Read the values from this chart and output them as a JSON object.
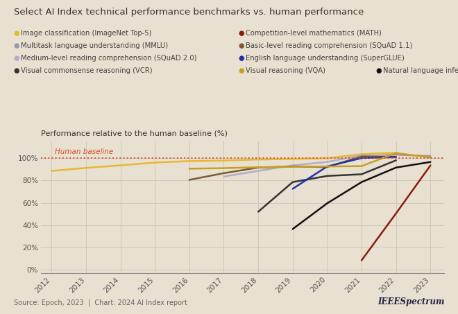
{
  "title": "Select AI Index technical performance benchmarks vs. human performance",
  "ylabel": "Performance relative to the human baseline (%)",
  "background_color": "#e8e0d0",
  "grid_color": "#ccc4b4",
  "source_text": "Source: Epoch, 2023  |  Chart: 2024 AI Index report",
  "ieee_text": "IEEESpectrum",
  "human_baseline_label": "Human baseline",
  "human_baseline_color": "#d94e2a",
  "series": [
    {
      "label": "Image classification (ImageNet Top-5)",
      "color": "#e8b830",
      "linewidth": 1.8,
      "data": [
        [
          2012,
          88.5
        ],
        [
          2013,
          91.2
        ],
        [
          2014,
          93.5
        ],
        [
          2015,
          96.0
        ],
        [
          2016,
          97.3
        ],
        [
          2017,
          97.8
        ],
        [
          2018,
          98.7
        ],
        [
          2019,
          99.2
        ],
        [
          2020,
          99.8
        ],
        [
          2021,
          103.5
        ],
        [
          2022,
          104.8
        ]
      ]
    },
    {
      "label": "Multitask language understanding (MMLU)",
      "color": "#9999aa",
      "linewidth": 1.8,
      "data": [
        [
          2021,
          101.5
        ],
        [
          2022,
          103.0
        ],
        [
          2023,
          101.8
        ]
      ]
    },
    {
      "label": "Medium-level reading comprehension (SQuAD 2.0)",
      "color": "#b0aec8",
      "linewidth": 1.8,
      "data": [
        [
          2017,
          83.5
        ],
        [
          2018,
          88.5
        ],
        [
          2019,
          93.5
        ],
        [
          2020,
          96.5
        ],
        [
          2021,
          102.5
        ],
        [
          2022,
          101.5
        ]
      ]
    },
    {
      "label": "Visual commonsense reasoning (VCR)",
      "color": "#333333",
      "linewidth": 1.8,
      "data": [
        [
          2018,
          52.0
        ],
        [
          2019,
          78.5
        ],
        [
          2020,
          84.0
        ],
        [
          2021,
          85.5
        ],
        [
          2022,
          98.0
        ]
      ]
    },
    {
      "label": "Competition-level mathematics (MATH)",
      "color": "#8b1a10",
      "linewidth": 1.8,
      "data": [
        [
          2021,
          8.5
        ],
        [
          2022,
          50.5
        ],
        [
          2023,
          93.5
        ]
      ]
    },
    {
      "label": "Basic-level reading comprehension (SQuAD 1.1)",
      "color": "#7a5c30",
      "linewidth": 1.8,
      "data": [
        [
          2016,
          80.5
        ],
        [
          2017,
          86.5
        ],
        [
          2018,
          91.5
        ],
        [
          2019,
          92.5
        ],
        [
          2020,
          92.0
        ],
        [
          2021,
          101.5
        ],
        [
          2022,
          101.0
        ]
      ]
    },
    {
      "label": "English language understanding (SuperGLUE)",
      "color": "#2233aa",
      "linewidth": 1.8,
      "data": [
        [
          2019,
          72.5
        ],
        [
          2020,
          92.5
        ],
        [
          2021,
          100.0
        ],
        [
          2022,
          101.0
        ]
      ]
    },
    {
      "label": "Visual reasoning (VQA)",
      "color": "#c8a020",
      "linewidth": 1.8,
      "data": [
        [
          2016,
          90.5
        ],
        [
          2017,
          91.0
        ],
        [
          2018,
          91.8
        ],
        [
          2019,
          92.2
        ],
        [
          2020,
          92.5
        ],
        [
          2021,
          92.8
        ],
        [
          2022,
          104.5
        ],
        [
          2023,
          100.5
        ]
      ]
    },
    {
      "label": "Natural language inference (aNLI)",
      "color": "#111111",
      "linewidth": 1.8,
      "data": [
        [
          2019,
          36.5
        ],
        [
          2020,
          59.5
        ],
        [
          2021,
          78.5
        ],
        [
          2022,
          91.5
        ],
        [
          2023,
          96.5
        ]
      ]
    }
  ],
  "xlim": [
    2011.7,
    2023.4
  ],
  "ylim": [
    -3,
    115
  ],
  "yticks": [
    0,
    20,
    40,
    60,
    80,
    100
  ],
  "xticks": [
    2012,
    2013,
    2014,
    2015,
    2016,
    2017,
    2018,
    2019,
    2020,
    2021,
    2022,
    2023
  ],
  "legend_items": [
    {
      "label": "Image classification (ImageNet Top-5)",
      "color": "#e8b830"
    },
    {
      "label": "Competition-level mathematics (MATH)",
      "color": "#8b1a10"
    },
    {
      "label": "Multitask language understanding (MMLU)",
      "color": "#9999aa"
    },
    {
      "label": "Basic-level reading comprehension (SQuAD 1.1)",
      "color": "#7a5c30"
    },
    {
      "label": "Medium-level reading comprehension (SQuAD 2.0)",
      "color": "#b0aec8"
    },
    {
      "label": "English language understanding (SuperGLUE)",
      "color": "#2233aa"
    },
    {
      "label": "Visual commonsense reasoning (VCR)",
      "color": "#333333"
    },
    {
      "label": "Visual reasoning (VQA)",
      "color": "#c8a020"
    },
    {
      "label": "Natural language inference (aNLI)",
      "color": "#111111"
    }
  ],
  "legend_rows": [
    [
      0,
      1
    ],
    [
      2,
      3
    ],
    [
      4,
      5
    ],
    [
      6,
      7,
      8
    ]
  ]
}
